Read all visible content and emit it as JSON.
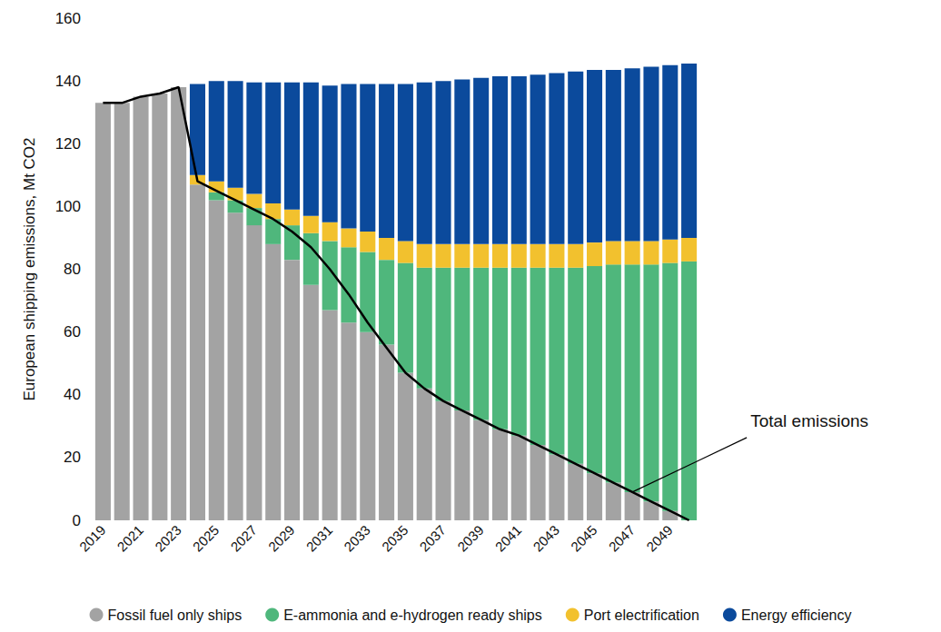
{
  "chart_data": {
    "type": "bar",
    "stacked": true,
    "grid": false,
    "legend": "bottom",
    "y_label": "European shipping emissions, Mt CO2",
    "categories": [
      "2019",
      null,
      "2021",
      null,
      "2023",
      null,
      "2025",
      null,
      "2027",
      null,
      "2029",
      null,
      "2031",
      null,
      "2033",
      null,
      "2035",
      null,
      "2037",
      null,
      "2039",
      null,
      "2041",
      null,
      "2043",
      null,
      "2045",
      null,
      "2047",
      null,
      "2049",
      null
    ],
    "ylim": [
      0,
      160
    ],
    "yticks": [
      0,
      20,
      40,
      60,
      80,
      100,
      120,
      140,
      160
    ],
    "series": [
      {
        "name": "Fossil fuel only ships",
        "type": "bar",
        "color": "#a3a3a3",
        "values": [
          133,
          133,
          135,
          136,
          138,
          107,
          102,
          98,
          94,
          88,
          83,
          75,
          67,
          63,
          60,
          56,
          47,
          42,
          38,
          35,
          32,
          29,
          27,
          24,
          21,
          18,
          15,
          12,
          9,
          6,
          3,
          0
        ]
      },
      {
        "name": "E-ammonia and e-hydrogen ready ships",
        "type": "bar",
        "color": "#4fb77c",
        "values": [
          0,
          0,
          0,
          0,
          0,
          0,
          2.5,
          4,
          5.5,
          8,
          11,
          16.5,
          22,
          24,
          25.5,
          27,
          35,
          38.5,
          42.5,
          45.5,
          48.5,
          51.5,
          53.5,
          56.5,
          59.5,
          62.5,
          66,
          69.5,
          72.5,
          75.5,
          79,
          82.5
        ]
      },
      {
        "name": "Port electrification",
        "type": "bar",
        "color": "#f2c12e",
        "values": [
          0,
          0,
          0,
          0,
          0,
          3,
          3.5,
          4,
          4.5,
          5,
          5,
          5.5,
          6,
          6,
          6.5,
          7,
          7,
          7.5,
          7.5,
          7.5,
          7.5,
          7.5,
          7.5,
          7.5,
          7.5,
          7.5,
          7.5,
          7.5,
          7.5,
          7.5,
          7.5,
          7.5
        ]
      },
      {
        "name": "Energy efficiency",
        "type": "bar",
        "color": "#0b4a9c",
        "values": [
          0,
          0,
          0,
          0,
          0,
          29,
          32,
          34,
          35.5,
          38.5,
          40.5,
          42.5,
          43.5,
          46,
          47,
          49,
          50,
          51.5,
          52,
          52.5,
          53,
          53.5,
          53.5,
          54,
          54.5,
          55,
          55,
          54.5,
          55,
          55.5,
          55.5,
          55.5
        ]
      },
      {
        "name": "Total emissions",
        "type": "line",
        "color": "#000000",
        "values": [
          133,
          133,
          135,
          136,
          138,
          108,
          105,
          102,
          99,
          96,
          92,
          87,
          80,
          72,
          63,
          55,
          47,
          42,
          38,
          35,
          32,
          29,
          27,
          24,
          21,
          18,
          15,
          12,
          9,
          6,
          3,
          0
        ]
      }
    ]
  }
}
